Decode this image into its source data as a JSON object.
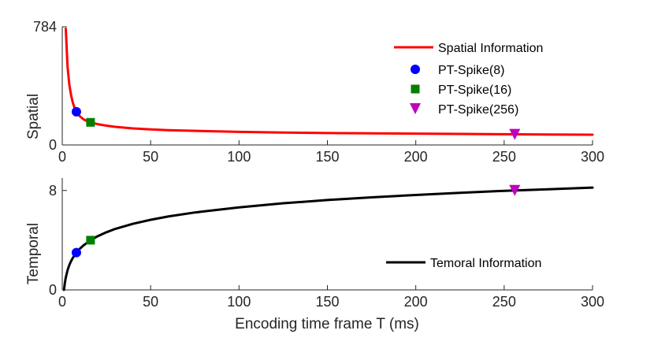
{
  "chart_data": [
    {
      "type": "line",
      "ylabel": "Spatial",
      "xlabel": "",
      "xlim": [
        0,
        300
      ],
      "ylim": [
        0,
        784
      ],
      "x_ticks": [
        0,
        50,
        100,
        150,
        200,
        250,
        300
      ],
      "y_ticks": [
        0,
        784
      ],
      "x_tick_labels": [
        "0",
        "50",
        "100",
        "150",
        "200",
        "250",
        "300"
      ],
      "y_tick_labels": [
        "0",
        "784"
      ],
      "series": [
        {
          "name": "Spatial Information",
          "color": "#ff0000",
          "x": [
            2,
            3,
            4,
            5,
            6,
            7,
            8,
            10,
            12,
            14,
            16,
            20,
            25,
            30,
            40,
            50,
            60,
            80,
            100,
            125,
            150,
            175,
            200,
            225,
            250,
            275,
            300
          ],
          "y": [
            770,
            520,
            400,
            330,
            280,
            245,
            220,
            190,
            170,
            158,
            150,
            138,
            128,
            120,
            110,
            103,
            98,
            92,
            87,
            82,
            79,
            77,
            75,
            73,
            71,
            69,
            68
          ]
        }
      ],
      "markers": [
        {
          "name": "PT-Spike(8)",
          "shape": "circle",
          "color": "#0000ff",
          "x": 8,
          "y": 220
        },
        {
          "name": "PT-Spike(16)",
          "shape": "square",
          "color": "#008000",
          "x": 16,
          "y": 150
        },
        {
          "name": "PT-Spike(256)",
          "shape": "triangle-down",
          "color": "#bf00bf",
          "x": 256,
          "y": 70
        }
      ],
      "legend_position": "top-right"
    },
    {
      "type": "line",
      "ylabel": "Temporal",
      "xlabel": "Encoding time frame T (ms)",
      "xlim": [
        0,
        300
      ],
      "ylim": [
        0,
        9
      ],
      "x_ticks": [
        0,
        50,
        100,
        150,
        200,
        250,
        300
      ],
      "y_ticks": [
        0,
        8
      ],
      "x_tick_labels": [
        "0",
        "50",
        "100",
        "150",
        "200",
        "250",
        "300"
      ],
      "y_tick_labels": [
        "0",
        "8"
      ],
      "series": [
        {
          "name": "Temoral Information",
          "color": "#000000",
          "x": [
            1,
            1.5,
            2,
            3,
            4,
            5,
            6,
            8,
            10,
            12,
            16,
            20,
            25,
            30,
            40,
            50,
            60,
            75,
            100,
            125,
            150,
            175,
            200,
            225,
            250,
            275,
            300
          ],
          "y": [
            0,
            0.58,
            1.0,
            1.58,
            2.0,
            2.32,
            2.58,
            3.0,
            3.32,
            3.58,
            4.0,
            4.32,
            4.64,
            4.91,
            5.32,
            5.64,
            5.91,
            6.23,
            6.64,
            6.97,
            7.23,
            7.45,
            7.64,
            7.81,
            7.97,
            8.1,
            8.23
          ]
        }
      ],
      "markers": [
        {
          "name": "PT-Spike(8)",
          "shape": "circle",
          "color": "#0000ff",
          "x": 8,
          "y": 3
        },
        {
          "name": "PT-Spike(16)",
          "shape": "square",
          "color": "#008000",
          "x": 16,
          "y": 4
        },
        {
          "name": "PT-Spike(256)",
          "shape": "triangle-down",
          "color": "#bf00bf",
          "x": 256,
          "y": 8
        }
      ],
      "legend_position": "bottom-right"
    }
  ]
}
